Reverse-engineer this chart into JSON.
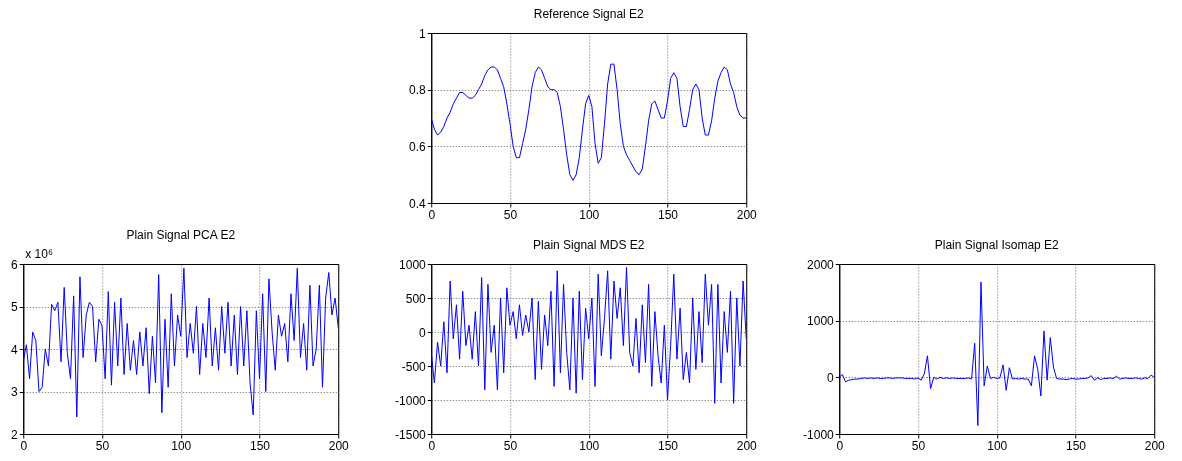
{
  "chart_data": [
    {
      "type": "line",
      "title": "Reference Signal E2",
      "x": [
        0,
        2,
        4,
        6,
        8,
        10,
        12,
        14,
        16,
        18,
        20,
        22,
        24,
        26,
        28,
        30,
        32,
        34,
        36,
        38,
        40,
        42,
        44,
        46,
        48,
        50,
        52,
        54,
        56,
        58,
        60,
        62,
        64,
        66,
        68,
        70,
        72,
        74,
        76,
        78,
        80,
        82,
        84,
        86,
        88,
        90,
        92,
        94,
        96,
        98,
        100,
        102,
        104,
        106,
        108,
        110,
        112,
        114,
        116,
        118,
        120,
        122,
        124,
        126,
        128,
        130,
        132,
        134,
        136,
        138,
        140,
        142,
        144,
        146,
        148,
        150,
        152,
        154,
        156,
        158,
        160,
        162,
        164,
        166,
        168,
        170,
        172,
        174,
        176,
        178,
        180,
        182,
        184,
        186,
        188,
        190,
        192,
        194,
        196,
        198,
        200
      ],
      "xlim": [
        0,
        200
      ],
      "xticks": [
        0,
        50,
        100,
        150,
        200
      ],
      "ylim": [
        0.4,
        1
      ],
      "yticks": [
        0.4,
        0.6,
        0.8,
        1
      ],
      "grid": true,
      "series": [
        {
          "color": "#0000ff",
          "values": [
            0.7,
            0.66,
            0.64,
            0.65,
            0.67,
            0.7,
            0.72,
            0.75,
            0.77,
            0.79,
            0.79,
            0.78,
            0.77,
            0.77,
            0.78,
            0.8,
            0.82,
            0.85,
            0.87,
            0.88,
            0.88,
            0.87,
            0.84,
            0.81,
            0.75,
            0.68,
            0.6,
            0.56,
            0.56,
            0.61,
            0.66,
            0.73,
            0.81,
            0.86,
            0.88,
            0.87,
            0.84,
            0.81,
            0.8,
            0.8,
            0.79,
            0.74,
            0.66,
            0.57,
            0.5,
            0.48,
            0.5,
            0.56,
            0.66,
            0.75,
            0.78,
            0.74,
            0.61,
            0.54,
            0.56,
            0.68,
            0.82,
            0.89,
            0.89,
            0.8,
            0.68,
            0.6,
            0.57,
            0.55,
            0.53,
            0.51,
            0.5,
            0.52,
            0.6,
            0.69,
            0.75,
            0.76,
            0.73,
            0.7,
            0.7,
            0.76,
            0.84,
            0.86,
            0.84,
            0.74,
            0.67,
            0.67,
            0.73,
            0.8,
            0.82,
            0.8,
            0.7,
            0.64,
            0.64,
            0.69,
            0.77,
            0.83,
            0.86,
            0.88,
            0.87,
            0.82,
            0.79,
            0.74,
            0.71,
            0.7,
            0.7
          ]
        }
      ]
    },
    {
      "type": "line",
      "title": "Plain Signal PCA E2",
      "annotations": [
        "x 10⁶"
      ],
      "x": [
        0,
        2,
        4,
        6,
        8,
        10,
        12,
        14,
        16,
        18,
        20,
        22,
        24,
        26,
        28,
        30,
        32,
        34,
        36,
        38,
        40,
        42,
        44,
        46,
        48,
        50,
        52,
        54,
        56,
        58,
        60,
        62,
        64,
        66,
        68,
        70,
        72,
        74,
        76,
        78,
        80,
        82,
        84,
        86,
        88,
        90,
        92,
        94,
        96,
        98,
        100,
        102,
        104,
        106,
        108,
        110,
        112,
        114,
        116,
        118,
        120,
        122,
        124,
        126,
        128,
        130,
        132,
        134,
        136,
        138,
        140,
        142,
        144,
        146,
        148,
        150,
        152,
        154,
        156,
        158,
        160,
        162,
        164,
        166,
        168,
        170,
        172,
        174,
        176,
        178,
        180,
        182,
        184,
        186,
        188,
        190,
        192,
        194,
        196,
        198,
        200
      ],
      "xlim": [
        0,
        200
      ],
      "xticks": [
        0,
        50,
        100,
        150,
        200
      ],
      "ylim": [
        2,
        6
      ],
      "yticks": [
        2,
        3,
        4,
        5,
        6
      ],
      "grid": true,
      "series": [
        {
          "color": "#0000ff",
          "values": [
            3.7,
            4.1,
            3.3,
            4.4,
            4.2,
            3.0,
            3.1,
            4.0,
            3.6,
            5.05,
            4.9,
            5.1,
            3.7,
            5.45,
            3.9,
            3.3,
            5.25,
            2.4,
            5.7,
            3.8,
            4.8,
            5.1,
            5.0,
            3.7,
            4.7,
            4.55,
            3.3,
            5.35,
            3.15,
            5.1,
            3.6,
            5.2,
            3.4,
            4.6,
            3.5,
            4.2,
            3.4,
            4.4,
            3.6,
            4.5,
            2.95,
            4.3,
            3.2,
            5.75,
            2.5,
            4.7,
            3.1,
            5.3,
            3.6,
            4.8,
            4.3,
            5.9,
            3.8,
            4.6,
            3.9,
            5.0,
            3.4,
            4.6,
            3.8,
            5.2,
            3.6,
            4.5,
            3.5,
            5.0,
            3.9,
            5.1,
            3.6,
            4.8,
            3.4,
            5.0,
            3.6,
            4.9,
            3.2,
            2.45,
            4.9,
            3.3,
            5.3,
            3.0,
            5.65,
            4.4,
            3.5,
            4.8,
            4.3,
            4.6,
            3.7,
            5.3,
            4.2,
            5.9,
            3.8,
            4.6,
            3.5,
            5.5,
            3.6,
            4.0,
            5.5,
            3.1,
            5.2,
            5.8,
            4.8,
            5.2,
            4.5
          ]
        }
      ]
    },
    {
      "type": "line",
      "title": "Plain Signal MDS E2",
      "x": [
        0,
        2,
        4,
        6,
        8,
        10,
        12,
        14,
        16,
        18,
        20,
        22,
        24,
        26,
        28,
        30,
        32,
        34,
        36,
        38,
        40,
        42,
        44,
        46,
        48,
        50,
        52,
        54,
        56,
        58,
        60,
        62,
        64,
        66,
        68,
        70,
        72,
        74,
        76,
        78,
        80,
        82,
        84,
        86,
        88,
        90,
        92,
        94,
        96,
        98,
        100,
        102,
        104,
        106,
        108,
        110,
        112,
        114,
        116,
        118,
        120,
        122,
        124,
        126,
        128,
        130,
        132,
        134,
        136,
        138,
        140,
        142,
        144,
        146,
        148,
        150,
        152,
        154,
        156,
        158,
        160,
        162,
        164,
        166,
        168,
        170,
        172,
        174,
        176,
        178,
        180,
        182,
        184,
        186,
        188,
        190,
        192,
        194,
        196,
        198,
        200
      ],
      "xlim": [
        0,
        200
      ],
      "xticks": [
        0,
        50,
        100,
        150,
        200
      ],
      "ylim": [
        -1500,
        1000
      ],
      "yticks": [
        -1500,
        -1000,
        -500,
        0,
        500,
        1000
      ],
      "grid": true,
      "series": [
        {
          "color": "#0000ff",
          "values": [
            -300,
            -750,
            -150,
            -500,
            150,
            -600,
            750,
            -100,
            400,
            -400,
            600,
            -200,
            100,
            -400,
            300,
            -500,
            800,
            -850,
            700,
            -300,
            100,
            -850,
            500,
            -600,
            650,
            100,
            300,
            -100,
            400,
            -50,
            250,
            0,
            500,
            -700,
            450,
            -550,
            250,
            -200,
            600,
            -800,
            900,
            -600,
            700,
            -300,
            -850,
            500,
            -900,
            600,
            -700,
            350,
            -100,
            500,
            -800,
            850,
            -350,
            200,
            900,
            -400,
            750,
            200,
            650,
            -200,
            950,
            -300,
            -500,
            200,
            -600,
            400,
            -450,
            700,
            -800,
            300,
            -350,
            -750,
            100,
            -1000,
            -200,
            850,
            -400,
            350,
            -700,
            -300,
            -750,
            500,
            -550,
            300,
            -450,
            850,
            100,
            700,
            -1050,
            700,
            -750,
            300,
            -300,
            600,
            -1050,
            500,
            -500,
            750,
            -100
          ]
        }
      ]
    },
    {
      "type": "line",
      "title": "Plain Signal Isomap E2",
      "x": [
        0,
        2,
        4,
        6,
        8,
        10,
        12,
        14,
        16,
        18,
        20,
        22,
        24,
        26,
        28,
        30,
        32,
        34,
        36,
        38,
        40,
        42,
        44,
        46,
        48,
        50,
        52,
        54,
        56,
        58,
        60,
        62,
        64,
        66,
        68,
        70,
        72,
        74,
        76,
        78,
        80,
        82,
        84,
        86,
        88,
        90,
        92,
        94,
        96,
        98,
        100,
        102,
        104,
        106,
        108,
        110,
        112,
        114,
        116,
        118,
        120,
        122,
        124,
        126,
        128,
        130,
        132,
        134,
        136,
        138,
        140,
        142,
        144,
        146,
        148,
        150,
        152,
        154,
        156,
        158,
        160,
        162,
        164,
        166,
        168,
        170,
        172,
        174,
        176,
        178,
        180,
        182,
        184,
        186,
        188,
        190,
        192,
        194,
        196,
        198,
        200
      ],
      "xlim": [
        0,
        200
      ],
      "xticks": [
        0,
        50,
        100,
        150,
        200
      ],
      "ylim": [
        -1000,
        2000
      ],
      "yticks": [
        -1000,
        0,
        1000,
        2000
      ],
      "grid": true,
      "series": [
        {
          "color": "#0000ff",
          "values": [
            0,
            50,
            -80,
            -50,
            -40,
            -30,
            -30,
            -20,
            -10,
            -20,
            -10,
            -20,
            -10,
            -20,
            -20,
            -10,
            -10,
            -20,
            -10,
            -10,
            -10,
            -20,
            -20,
            -20,
            -30,
            -10,
            -50,
            60,
            380,
            -200,
            0,
            -30,
            0,
            -20,
            -10,
            -20,
            -10,
            -20,
            -20,
            -20,
            -20,
            -10,
            -30,
            600,
            -850,
            1680,
            -150,
            200,
            -20,
            0,
            -20,
            -10,
            220,
            -230,
            170,
            -30,
            -20,
            -30,
            -20,
            -30,
            -30,
            -150,
            380,
            150,
            -330,
            820,
            -50,
            700,
            180,
            -20,
            -30,
            -30,
            -40,
            -30,
            -20,
            -30,
            -30,
            -20,
            -20,
            -10,
            30,
            -50,
            -10,
            -40,
            -20,
            -20,
            -10,
            -20,
            20,
            -30,
            -20,
            -10,
            -20,
            -20,
            -10,
            -20,
            -30,
            -10,
            -20,
            40,
            0
          ]
        }
      ]
    }
  ]
}
